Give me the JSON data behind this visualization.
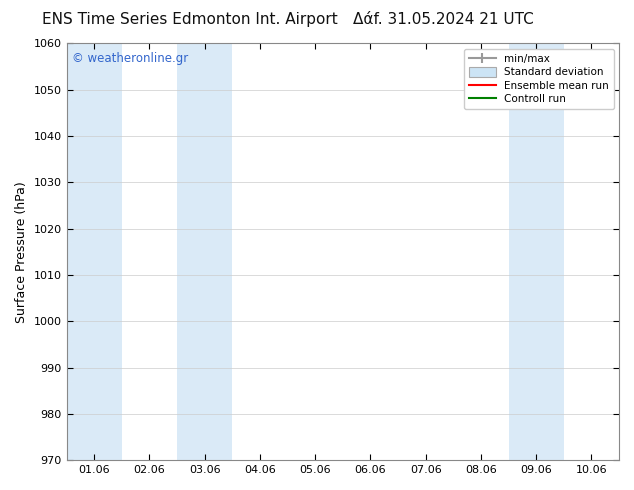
{
  "title_left": "ENS Time Series Edmonton Int. Airport",
  "title_right": "Daf. 31.05.2024 21 UTC",
  "ylabel": "Surface Pressure (hPa)",
  "ylim": [
    970,
    1060
  ],
  "yticks": [
    970,
    980,
    990,
    1000,
    1010,
    1020,
    1030,
    1040,
    1050,
    1060
  ],
  "xtick_labels": [
    "01.06",
    "02.06",
    "03.06",
    "04.06",
    "05.06",
    "06.06",
    "07.06",
    "08.06",
    "09.06",
    "10.06"
  ],
  "bg_color": "#ffffff",
  "plot_bg_color": "#ffffff",
  "band_color": "#daeaf7",
  "watermark": "© weatheronline.gr",
  "watermark_color": "#3366cc",
  "legend_labels": [
    "min/max",
    "Standard deviation",
    "Ensemble mean run",
    "Controll run"
  ],
  "title_fontsize": 11,
  "axis_label_fontsize": 9,
  "tick_fontsize": 8
}
